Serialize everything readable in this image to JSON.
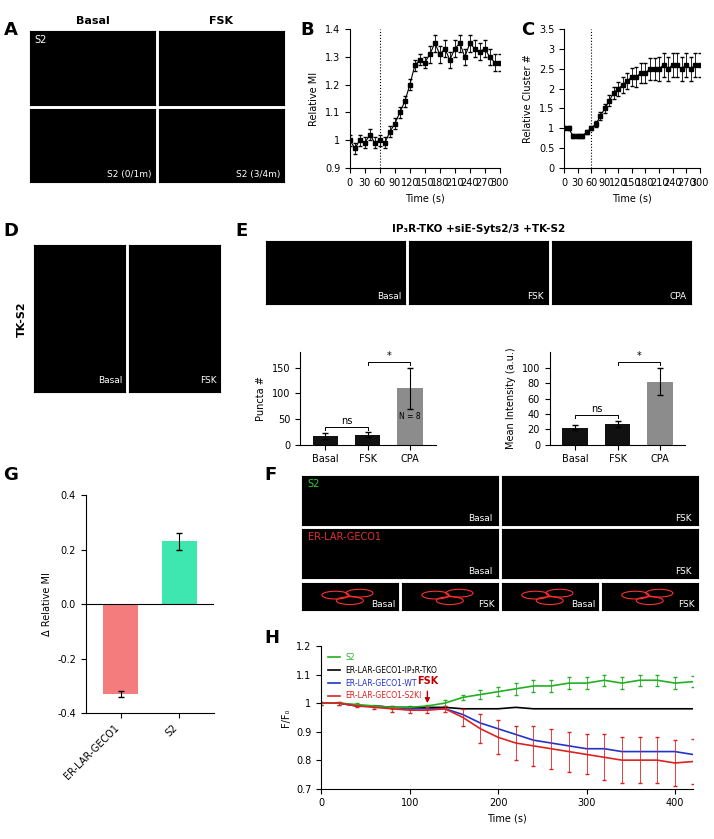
{
  "chart_data": [
    {
      "panel": "B",
      "type": "line",
      "xlabel": "Time (s)",
      "ylabel": "Relative MI",
      "x": [
        0,
        10,
        20,
        30,
        40,
        50,
        60,
        70,
        80,
        90,
        100,
        110,
        120,
        130,
        140,
        150,
        160,
        170,
        180,
        190,
        200,
        210,
        220,
        230,
        240,
        250,
        260,
        270,
        280,
        290,
        300
      ],
      "values": [
        1.0,
        0.97,
        1.0,
        0.99,
        1.02,
        0.99,
        1.0,
        0.99,
        1.03,
        1.06,
        1.1,
        1.14,
        1.2,
        1.27,
        1.29,
        1.28,
        1.31,
        1.35,
        1.31,
        1.33,
        1.29,
        1.33,
        1.35,
        1.3,
        1.35,
        1.33,
        1.32,
        1.33,
        1.3,
        1.28,
        1.28
      ],
      "errors": [
        0.02,
        0.02,
        0.02,
        0.02,
        0.02,
        0.02,
        0.02,
        0.02,
        0.02,
        0.02,
        0.02,
        0.02,
        0.02,
        0.02,
        0.02,
        0.02,
        0.03,
        0.03,
        0.03,
        0.03,
        0.03,
        0.03,
        0.03,
        0.03,
        0.03,
        0.03,
        0.03,
        0.03,
        0.03,
        0.03,
        0.03
      ],
      "color": "#000000",
      "marker": "square",
      "vline": 60,
      "xlim": [
        0,
        300
      ],
      "xticks": [
        0,
        30,
        60,
        90,
        120,
        150,
        180,
        210,
        240,
        270,
        300
      ],
      "ylim": [
        0.9,
        1.4
      ],
      "yticks": [
        0.9,
        1,
        1.1,
        1.2,
        1.3,
        1.4
      ]
    },
    {
      "panel": "C",
      "type": "line",
      "xlabel": "Time (s)",
      "ylabel": "Relative Cluster #",
      "x": [
        0,
        10,
        20,
        30,
        40,
        50,
        60,
        70,
        80,
        90,
        100,
        110,
        120,
        130,
        140,
        150,
        160,
        170,
        180,
        190,
        200,
        210,
        220,
        230,
        240,
        250,
        260,
        270,
        280,
        290,
        300
      ],
      "values": [
        1.0,
        1.0,
        0.8,
        0.8,
        0.8,
        0.9,
        1.0,
        1.1,
        1.3,
        1.5,
        1.7,
        1.9,
        2.0,
        2.1,
        2.2,
        2.3,
        2.3,
        2.4,
        2.4,
        2.5,
        2.5,
        2.5,
        2.6,
        2.5,
        2.6,
        2.6,
        2.5,
        2.6,
        2.5,
        2.6,
        2.6
      ],
      "errors": [
        0.05,
        0.05,
        0.05,
        0.05,
        0.05,
        0.05,
        0.05,
        0.08,
        0.1,
        0.12,
        0.15,
        0.15,
        0.18,
        0.2,
        0.2,
        0.22,
        0.25,
        0.25,
        0.25,
        0.28,
        0.28,
        0.3,
        0.3,
        0.3,
        0.3,
        0.3,
        0.3,
        0.3,
        0.3,
        0.3,
        0.3
      ],
      "color": "#000000",
      "marker": "square",
      "vline": 60,
      "xlim": [
        0,
        300
      ],
      "xticks": [
        0,
        30,
        60,
        90,
        120,
        150,
        180,
        210,
        240,
        270,
        300
      ],
      "ylim": [
        0,
        3.5
      ],
      "yticks": [
        0,
        0.5,
        1,
        1.5,
        2,
        2.5,
        3,
        3.5
      ]
    },
    {
      "panel": "E",
      "type": "bar",
      "ylabel": "Puncta #",
      "categories": [
        "Basal",
        "FSK",
        "CPA"
      ],
      "values": [
        17,
        19,
        110
      ],
      "errors": [
        5,
        5,
        40
      ],
      "colors": [
        "#111111",
        "#111111",
        "#8c8c8c"
      ],
      "comparisons": [
        {
          "categories": [
            "Basal",
            "FSK"
          ],
          "label": "ns"
        },
        {
          "categories": [
            "FSK",
            "CPA"
          ],
          "label": "*"
        }
      ],
      "annotations": [
        {
          "text": "N = 8",
          "category": "CPA"
        }
      ],
      "ylim": [
        0,
        180
      ],
      "yticks": [
        0,
        50,
        100,
        150
      ]
    },
    {
      "panel": "E",
      "type": "bar",
      "ylabel": "Mean Intensity (a.u.)",
      "categories": [
        "Basal",
        "FSK",
        "CPA"
      ],
      "values": [
        22,
        27,
        82
      ],
      "errors": [
        3,
        4,
        18
      ],
      "colors": [
        "#111111",
        "#111111",
        "#8c8c8c"
      ],
      "comparisons": [
        {
          "categories": [
            "Basal",
            "FSK"
          ],
          "label": "ns"
        },
        {
          "categories": [
            "FSK",
            "CPA"
          ],
          "label": "*"
        }
      ],
      "ylim": [
        0,
        120
      ],
      "yticks": [
        0,
        20,
        40,
        60,
        80,
        100
      ]
    },
    {
      "panel": "G",
      "type": "bar",
      "ylabel": "Δ Relative MI",
      "categories": [
        "ER-LAR-GECO1",
        "S2"
      ],
      "values": [
        -0.33,
        0.23
      ],
      "errors": [
        0.01,
        0.03
      ],
      "colors": [
        "#f47c7c",
        "#3ee6b0"
      ],
      "ylim": [
        -0.4,
        0.4
      ],
      "yticks": [
        -0.4,
        -0.2,
        0.0,
        0.2,
        0.4
      ]
    },
    {
      "panel": "H",
      "type": "line",
      "xlabel": "Time (s)",
      "ylabel": "F/F₀",
      "legend": "upper left",
      "x": [
        0,
        20,
        40,
        60,
        80,
        100,
        120,
        140,
        160,
        180,
        200,
        220,
        240,
        260,
        280,
        300,
        320,
        340,
        360,
        380,
        400,
        420
      ],
      "series": [
        {
          "name": "S2",
          "color": "#22b022",
          "values": [
            1.0,
            1.0,
            0.995,
            0.99,
            0.985,
            0.985,
            0.99,
            1.0,
            1.02,
            1.03,
            1.04,
            1.05,
            1.06,
            1.06,
            1.07,
            1.07,
            1.08,
            1.07,
            1.08,
            1.08,
            1.07,
            1.075
          ],
          "errors": [
            0.005,
            0.005,
            0.005,
            0.005,
            0.005,
            0.005,
            0.005,
            0.01,
            0.01,
            0.015,
            0.015,
            0.02,
            0.02,
            0.02,
            0.02,
            0.02,
            0.02,
            0.02,
            0.02,
            0.02,
            0.02,
            0.02
          ]
        },
        {
          "name": "ER-LAR-GECO1-IP₃R-TKO",
          "color": "#000000",
          "values": [
            1.0,
            1.0,
            0.99,
            0.99,
            0.985,
            0.985,
            0.985,
            0.985,
            0.98,
            0.98,
            0.98,
            0.985,
            0.98,
            0.98,
            0.98,
            0.98,
            0.98,
            0.98,
            0.98,
            0.98,
            0.98,
            0.98
          ]
        },
        {
          "name": "ER-LAR-GECO1-WT",
          "color": "#2233cc",
          "values": [
            1.0,
            1.0,
            0.99,
            0.99,
            0.985,
            0.98,
            0.98,
            0.98,
            0.96,
            0.93,
            0.91,
            0.89,
            0.87,
            0.86,
            0.85,
            0.84,
            0.84,
            0.83,
            0.83,
            0.83,
            0.83,
            0.82
          ]
        },
        {
          "name": "ER-LAR-GECO1-S2KI",
          "color": "#dd2222",
          "values": [
            1.0,
            1.0,
            0.99,
            0.985,
            0.98,
            0.975,
            0.975,
            0.98,
            0.95,
            0.91,
            0.88,
            0.86,
            0.85,
            0.84,
            0.83,
            0.82,
            0.81,
            0.8,
            0.8,
            0.8,
            0.79,
            0.795
          ],
          "errors": [
            0.005,
            0.005,
            0.005,
            0.005,
            0.01,
            0.01,
            0.01,
            0.01,
            0.03,
            0.05,
            0.06,
            0.06,
            0.07,
            0.07,
            0.07,
            0.07,
            0.08,
            0.08,
            0.08,
            0.08,
            0.08,
            0.08
          ]
        }
      ],
      "annotations": [
        {
          "text": "FSK",
          "x": 120,
          "color": "#c00000"
        }
      ],
      "xlim": [
        0,
        420
      ],
      "xticks": [
        0,
        100,
        200,
        300,
        400
      ],
      "ylim": [
        0.7,
        1.2
      ],
      "yticks": [
        0.7,
        0.8,
        0.9,
        1,
        1.1,
        1.2
      ]
    }
  ],
  "image_panels": [
    {
      "panel": "A",
      "col_titles": [
        "Basal",
        "FSK"
      ],
      "rows": [
        {
          "label": "S2",
          "cells": [
            null,
            null
          ]
        },
        {
          "cells": [
            "S2 (0/1m)",
            "S2 (3/4m)"
          ]
        }
      ]
    },
    {
      "panel": "D",
      "side_label": "TK-S2",
      "rows": [
        {
          "cells": [
            "Basal",
            "FSK"
          ]
        }
      ]
    },
    {
      "panel": "E",
      "header": "IP₃R-TKO +siE-Syts2/3 +TK-S2",
      "rows": [
        {
          "cells": [
            "Basal",
            "FSK",
            "CPA"
          ]
        }
      ]
    },
    {
      "panel": "F",
      "rows": [
        {
          "label": "S2",
          "color": "#33cc33",
          "cells": [
            "Basal",
            "FSK"
          ]
        },
        {
          "label": "ER-LAR-GECO1",
          "color": "#e03030",
          "cells": [
            "Basal",
            "FSK"
          ]
        },
        {
          "cells": [
            "Basal",
            "FSK",
            "Basal",
            "FSK"
          ]
        }
      ]
    }
  ]
}
